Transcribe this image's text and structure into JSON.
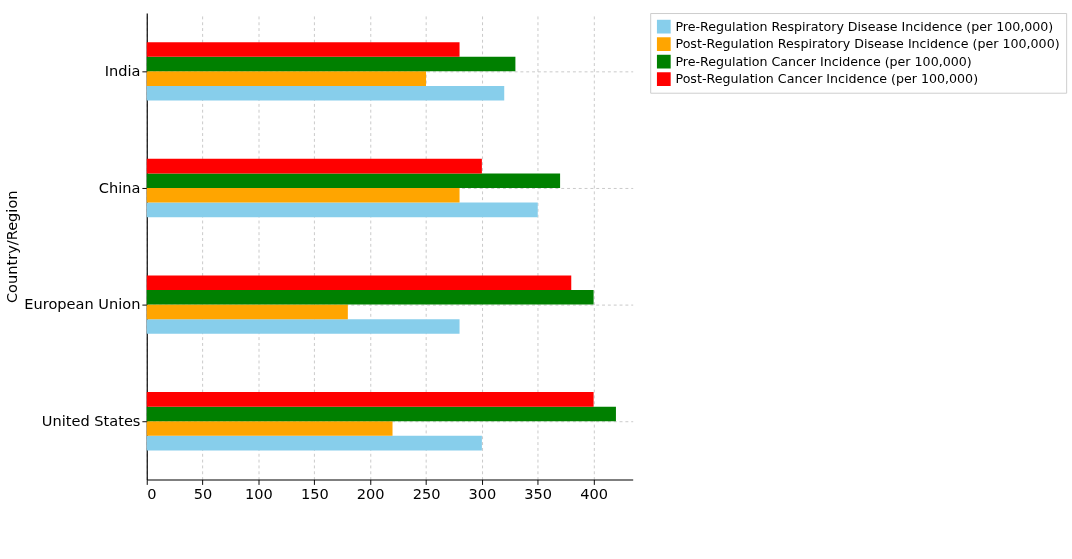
{
  "chart_data": {
    "type": "bar",
    "orientation": "horizontal",
    "ylabel": "Country/Region",
    "categories": [
      "India",
      "China",
      "European Union",
      "United States"
    ],
    "series": [
      {
        "name": "Pre-Regulation Respiratory Disease Incidence (per 100,000)",
        "color": "#87ceeb",
        "values": [
          320,
          350,
          280,
          300
        ]
      },
      {
        "name": "Post-Regulation Respiratory Disease Incidence (per 100,000)",
        "color": "#ffa500",
        "values": [
          250,
          280,
          180,
          220
        ]
      },
      {
        "name": "Pre-Regulation Cancer Incidence (per 100,000)",
        "color": "#008000",
        "values": [
          330,
          370,
          400,
          420
        ]
      },
      {
        "name": "Post-Regulation Cancer Incidence (per 100,000)",
        "color": "#ff0000",
        "values": [
          280,
          300,
          380,
          400
        ]
      }
    ],
    "xlim": [
      0,
      435
    ],
    "xticks": [
      0,
      50,
      100,
      150,
      200,
      250,
      300,
      350,
      400
    ],
    "grid": true,
    "legend": "right"
  }
}
